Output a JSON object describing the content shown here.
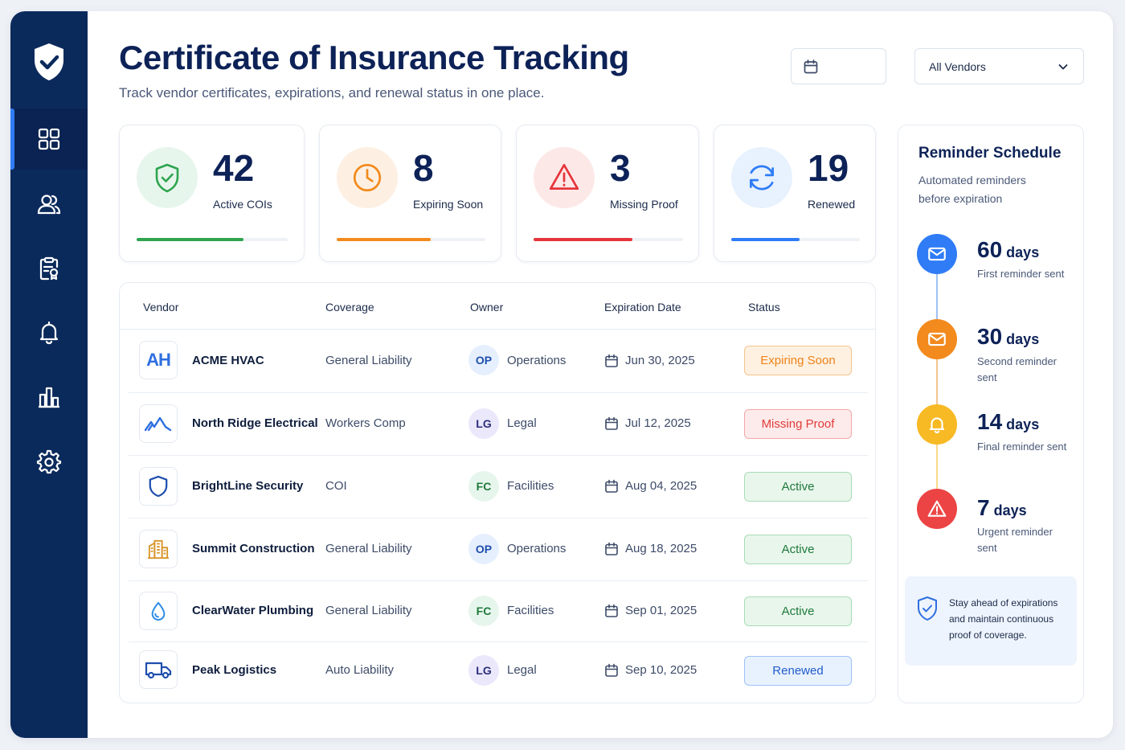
{
  "header": {
    "title": "Certificate of Insurance Tracking",
    "subtitle": "Track vendor certificates, expirations, and renewal status in one place.",
    "date_value": "",
    "vendor_filter": "All Vendors"
  },
  "sidebar": {
    "items": [
      {
        "icon": "dashboard-icon",
        "active": true
      },
      {
        "icon": "users-icon",
        "active": false
      },
      {
        "icon": "certificate-icon",
        "active": false
      },
      {
        "icon": "bell-icon",
        "active": false
      },
      {
        "icon": "chart-icon",
        "active": false
      },
      {
        "icon": "gear-icon",
        "active": false
      }
    ]
  },
  "stats": [
    {
      "value": "42",
      "label": "Active COIs",
      "progress": 0.71,
      "color": "#2ea44f",
      "icon": "shield-check-icon"
    },
    {
      "value": "8",
      "label": "Expiring Soon",
      "progress": 0.63,
      "color": "#f28a1e",
      "icon": "clock-icon"
    },
    {
      "value": "3",
      "label": "Missing Proof",
      "progress": 0.66,
      "color": "#e5353b",
      "icon": "warning-icon"
    },
    {
      "value": "19",
      "label": "Renewed",
      "progress": 0.53,
      "color": "#2f7cf6",
      "icon": "refresh-icon"
    }
  ],
  "table": {
    "columns": [
      "Vendor",
      "Coverage",
      "Owner",
      "Expiration Date",
      "Status"
    ],
    "rows": [
      {
        "vendor": "ACME HVAC",
        "logo": "AH",
        "coverage": "General Liability",
        "owner_initials": "OP",
        "owner": "Operations",
        "expiration": "Jun 30, 2025",
        "status": "Expiring Soon",
        "status_type": "expiring"
      },
      {
        "vendor": "North Ridge Electrical",
        "logo": "",
        "coverage": "Workers Comp",
        "owner_initials": "LG",
        "owner": "Legal",
        "expiration": "Jul 12, 2025",
        "status": "Missing Proof",
        "status_type": "missing"
      },
      {
        "vendor": "BrightLine Security",
        "logo": "",
        "coverage": "COI",
        "owner_initials": "FC",
        "owner": "Facilities",
        "expiration": "Aug 04, 2025",
        "status": "Active",
        "status_type": "active"
      },
      {
        "vendor": "Summit Construction",
        "logo": "",
        "coverage": "General Liability",
        "owner_initials": "OP",
        "owner": "Operations",
        "expiration": "Aug 18, 2025",
        "status": "Active",
        "status_type": "active"
      },
      {
        "vendor": "ClearWater Plumbing",
        "logo": "",
        "coverage": "General Liability",
        "owner_initials": "FC",
        "owner": "Facilities",
        "expiration": "Sep 01, 2025",
        "status": "Active",
        "status_type": "active"
      },
      {
        "vendor": "Peak Logistics",
        "logo": "",
        "coverage": "Auto Liability",
        "owner_initials": "LG",
        "owner": "Legal",
        "expiration": "Sep 10, 2025",
        "status": "Renewed",
        "status_type": "renewed"
      }
    ]
  },
  "reminders": {
    "title": "Reminder Schedule",
    "subtitle": "Automated reminders before expiration",
    "unit": "days",
    "items": [
      {
        "days": "60",
        "desc": "First reminder sent",
        "color": "#2f7cf6",
        "icon": "mail-icon"
      },
      {
        "days": "30",
        "desc": "Second reminder sent",
        "color": "#f28a1e",
        "icon": "mail-icon"
      },
      {
        "days": "14",
        "desc": "Final reminder sent",
        "color": "#f7b924",
        "icon": "bell-icon"
      },
      {
        "days": "7",
        "desc": "Urgent reminder sent",
        "color": "#ec4444",
        "icon": "warning-icon"
      }
    ],
    "note": "Stay ahead of expirations and maintain continuous proof of coverage."
  }
}
